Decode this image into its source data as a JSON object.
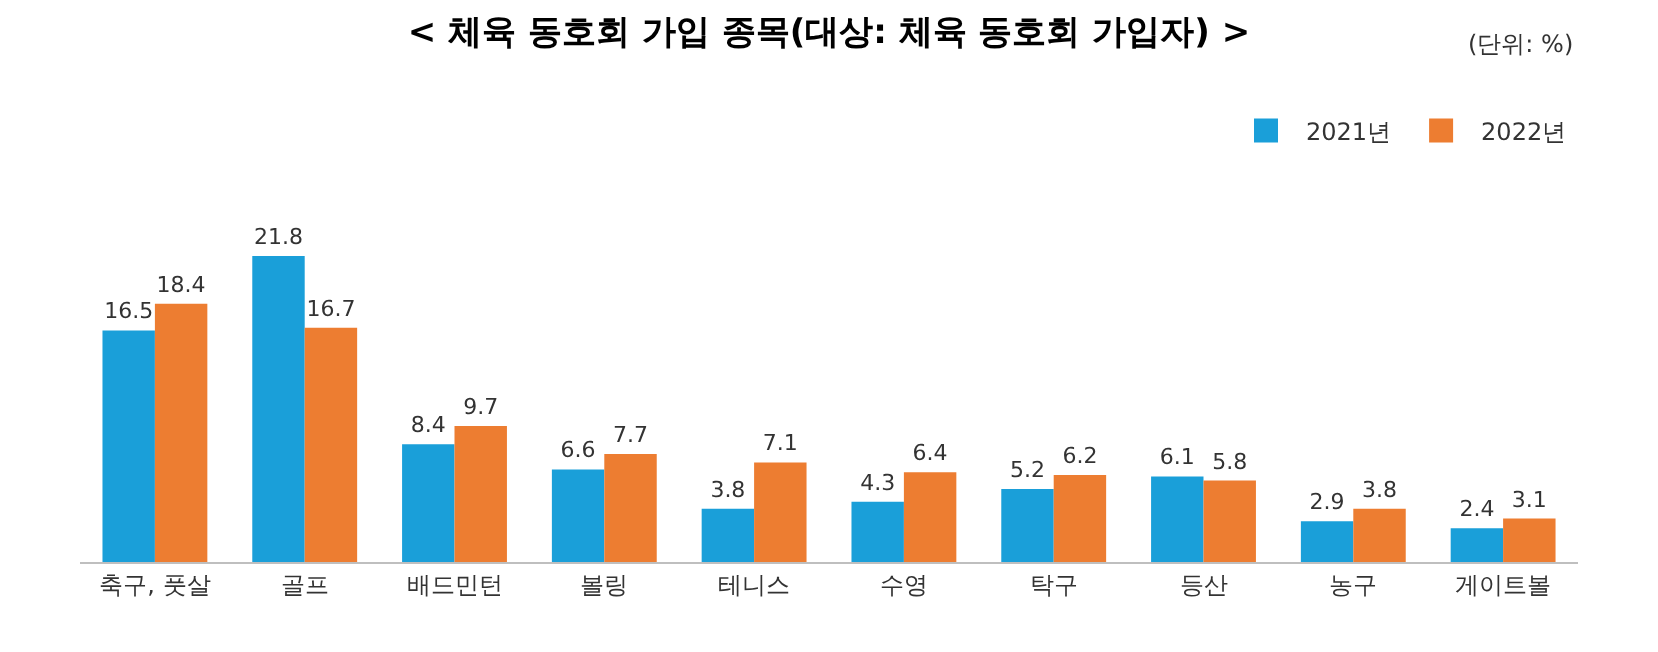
{
  "chart_data": {
    "type": "bar",
    "title": "< 체육 동호회 가입 종목(대상: 체육 동호회 가입자) >",
    "annotations": [
      "(단위: %)"
    ],
    "categories": [
      "축구, 풋살",
      "골프",
      "배드민턴",
      "볼링",
      "테니스",
      "수영",
      "탁구",
      "등산",
      "농구",
      "게이트볼"
    ],
    "series": [
      {
        "name": "2021년",
        "color": "#1a9fd9",
        "values": [
          16.5,
          21.8,
          8.4,
          6.6,
          3.8,
          4.3,
          5.2,
          6.1,
          2.9,
          2.4
        ]
      },
      {
        "name": "2022년",
        "color": "#ed7d31",
        "values": [
          18.4,
          16.7,
          9.7,
          7.7,
          7.1,
          6.4,
          6.2,
          5.8,
          3.8,
          3.1
        ]
      }
    ],
    "data_labels": true,
    "legend": "top right",
    "grid": false,
    "tick_labels": "x"
  }
}
